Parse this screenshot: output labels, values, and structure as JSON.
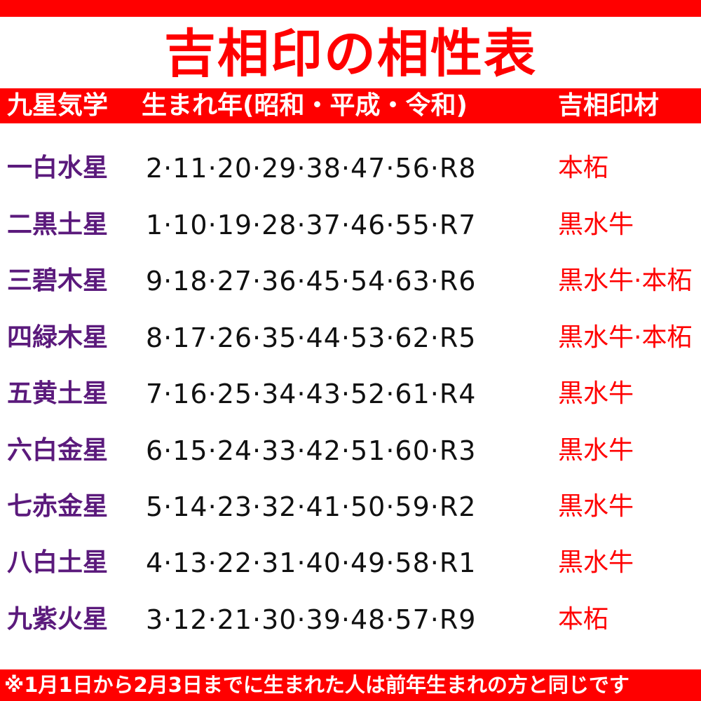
{
  "title": "吉相印の相性表",
  "header": {
    "col1": "九星気学",
    "col2": "生まれ年(昭和・平成・令和)",
    "col3": "吉相印材"
  },
  "rows": [
    {
      "star": "一白水星",
      "years": "2·11·20·29·38·47·56·R8",
      "material": "本柘"
    },
    {
      "star": "二黒土星",
      "years": "1·10·19·28·37·46·55·R7",
      "material": "黒水牛"
    },
    {
      "star": "三碧木星",
      "years": "9·18·27·36·45·54·63·R6",
      "material": "黒水牛·本柘"
    },
    {
      "star": "四緑木星",
      "years": "8·17·26·35·44·53·62·R5",
      "material": "黒水牛·本柘"
    },
    {
      "star": "五黄土星",
      "years": "7·16·25·34·43·52·61·R4",
      "material": "黒水牛"
    },
    {
      "star": "六白金星",
      "years": "6·15·24·33·42·51·60·R3",
      "material": "黒水牛"
    },
    {
      "star": "七赤金星",
      "years": "5·14·23·32·41·50·59·R2",
      "material": "黒水牛"
    },
    {
      "star": "八白土星",
      "years": "4·13·22·31·40·49·58·R1",
      "material": "黒水牛"
    },
    {
      "star": "九紫火星",
      "years": "3·12·21·30·39·48·57·R9",
      "material": "本柘"
    }
  ],
  "footer": "※1月1日から2月3日までに生まれた人は前年生まれの方と同じです",
  "colors": {
    "accent": "#ff0000",
    "star": "#5b1a7c",
    "text": "#111111"
  }
}
